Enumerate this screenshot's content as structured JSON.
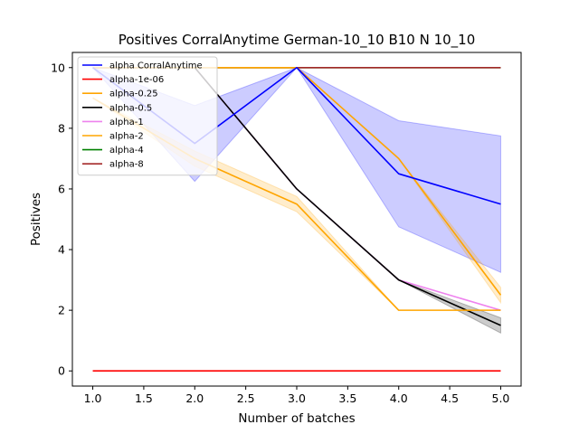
{
  "chart_data": {
    "type": "line",
    "title": "Positives CorralAnytime German-10_10 B10 N 10_10",
    "xlabel": "Number of batches",
    "ylabel": "Positives",
    "xlim": [
      0.8,
      5.2
    ],
    "ylim": [
      -0.5,
      10.5
    ],
    "xticks": [
      "1.0",
      "1.5",
      "2.0",
      "2.5",
      "3.0",
      "3.5",
      "4.0",
      "4.5",
      "5.0"
    ],
    "yticks": [
      "0",
      "2",
      "4",
      "6",
      "8",
      "10"
    ],
    "grid": false,
    "legend_position": "top-left",
    "x": [
      1,
      2,
      3,
      4,
      5
    ],
    "series": [
      {
        "name": "alpha CorralAnytime",
        "color": "#0000ff",
        "values": [
          10,
          7.5,
          10,
          6.5,
          5.5
        ],
        "lower": [
          10,
          6.25,
          10,
          4.75,
          3.25
        ],
        "upper": [
          10,
          8.75,
          10,
          8.25,
          7.75
        ],
        "band_color": "#0000ff"
      },
      {
        "name": "alpha-1e-06",
        "color": "#ff0000",
        "values": [
          0,
          0,
          0,
          0,
          0
        ]
      },
      {
        "name": "alpha-0.25",
        "color": "#ffa500",
        "values": [
          10,
          10,
          10,
          7,
          2.5
        ],
        "lower": [
          10,
          10,
          10,
          7,
          2.25
        ],
        "upper": [
          10,
          10,
          10,
          7,
          2.75
        ],
        "band_color": "#ffa500"
      },
      {
        "name": "alpha-0.5",
        "color": "#000000",
        "values": [
          10,
          10,
          6,
          3,
          1.5
        ],
        "lower": [
          10,
          10,
          6,
          3,
          1.25
        ],
        "upper": [
          10,
          10,
          6,
          3,
          1.75
        ],
        "band_color": "#000000"
      },
      {
        "name": "alpha-1",
        "color": "#ee82ee",
        "values": [
          10,
          10,
          6,
          3,
          2
        ]
      },
      {
        "name": "alpha-2",
        "color": "#ffa500",
        "values": [
          9,
          7,
          5.5,
          2,
          2
        ],
        "lower": [
          9,
          6.75,
          5.25,
          2,
          2
        ],
        "upper": [
          9,
          7.25,
          5.75,
          2,
          2
        ],
        "band_color": "#ffa500"
      },
      {
        "name": "alpha-4",
        "color": "#008000",
        "values": [
          10,
          10,
          10,
          10,
          10
        ]
      },
      {
        "name": "alpha-8",
        "color": "#a52a2a",
        "values": [
          10,
          10,
          10,
          10,
          10
        ]
      }
    ]
  }
}
